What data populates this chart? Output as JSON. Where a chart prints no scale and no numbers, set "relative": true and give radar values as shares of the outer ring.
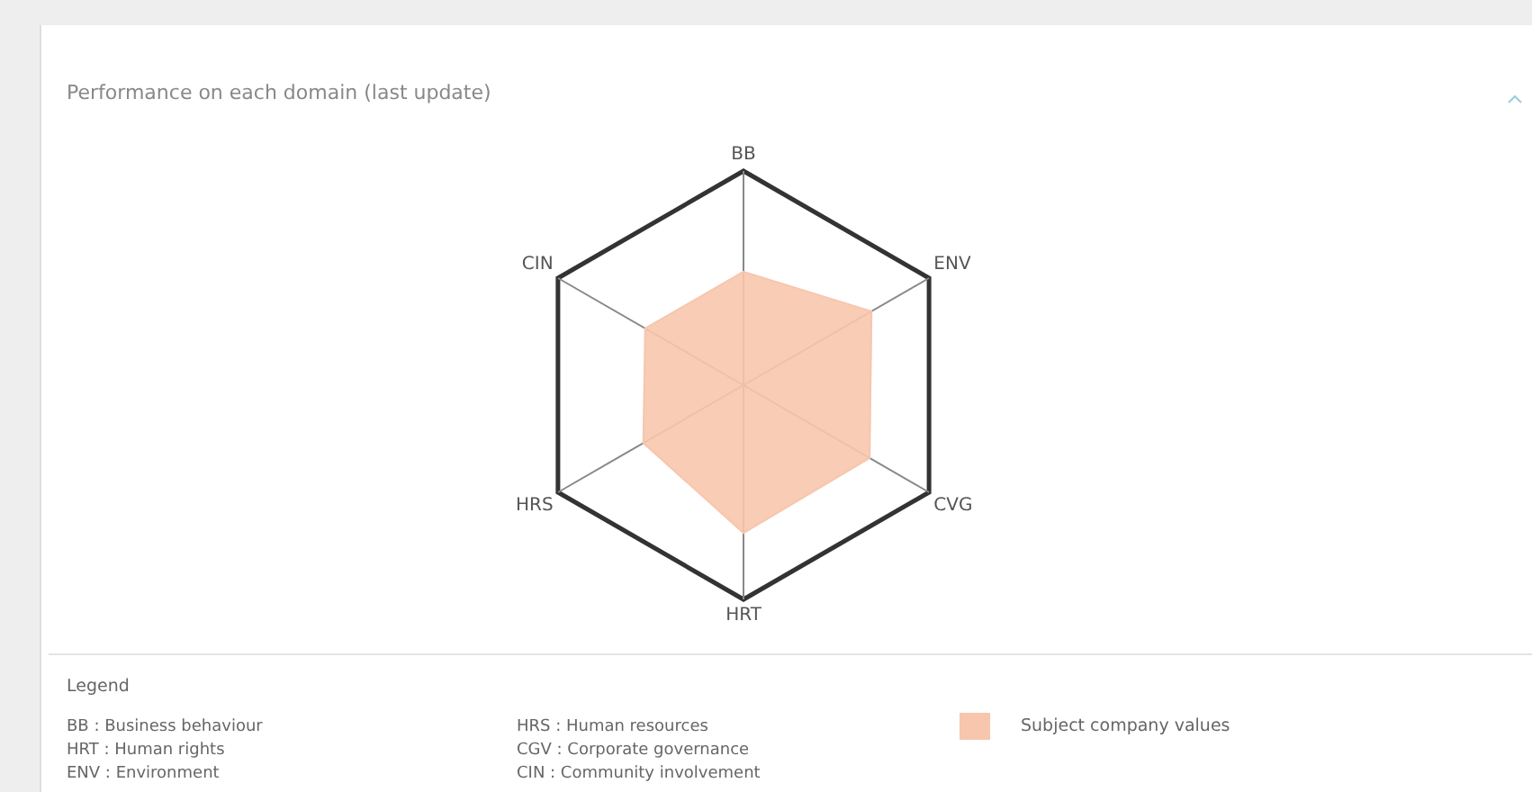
{
  "chart_data": {
    "type": "radar",
    "title": "Performance on each domain (last update)",
    "legend_title": "Legend",
    "categories": [
      "BB",
      "ENV",
      "CVG",
      "HRT",
      "HRS",
      "CIN"
    ],
    "relative": true,
    "legend": "bottom",
    "series": [
      {
        "name": "Subject company values",
        "color": "#f7c6ad",
        "values": [
          0.53,
          0.69,
          0.68,
          0.69,
          0.54,
          0.53
        ]
      }
    ],
    "annotations": [
      "BB : Business behaviour",
      "HRT : Human rights",
      "ENV : Environment",
      "HRS : Human resources",
      "CGV : Corporate governance",
      "CIN : Community involvement"
    ]
  }
}
